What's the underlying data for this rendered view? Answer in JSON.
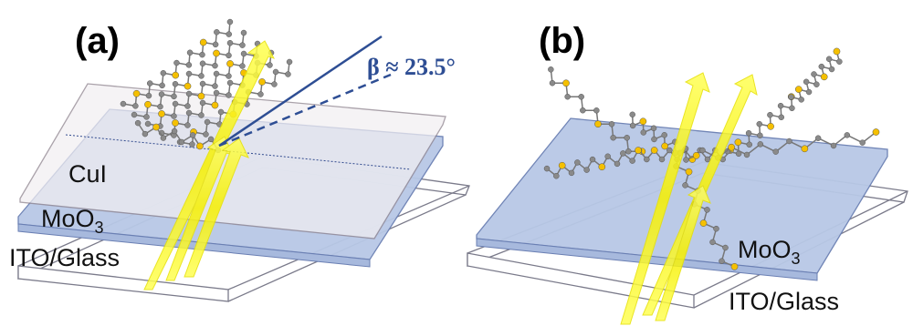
{
  "panels": [
    {
      "id": "a",
      "tag": "(a)",
      "angle_label": "β ≈ 23.5°",
      "tilt_angle_deg": 23.5,
      "layers": [
        {
          "name": "CuI",
          "label": "CuI"
        },
        {
          "name": "MoO3",
          "label_main": "MoO",
          "label_sub": "3"
        },
        {
          "name": "ITO/Glass",
          "label": "ITO/Glass"
        }
      ]
    },
    {
      "id": "b",
      "tag": "(b)",
      "layers": [
        {
          "name": "MoO3",
          "label_main": "MoO",
          "label_sub": "3"
        },
        {
          "name": "ITO/Glass",
          "label": "ITO/Glass"
        }
      ]
    }
  ],
  "colors": {
    "moo3_layer": "#b8c8e6",
    "cui_layer": "#f2eff2",
    "glass_layer": "#ffffff",
    "arrow": "#ffff33",
    "angle": "#2e4e94",
    "carbon": "#8a8a8a",
    "sulfur": "#f5c000"
  }
}
